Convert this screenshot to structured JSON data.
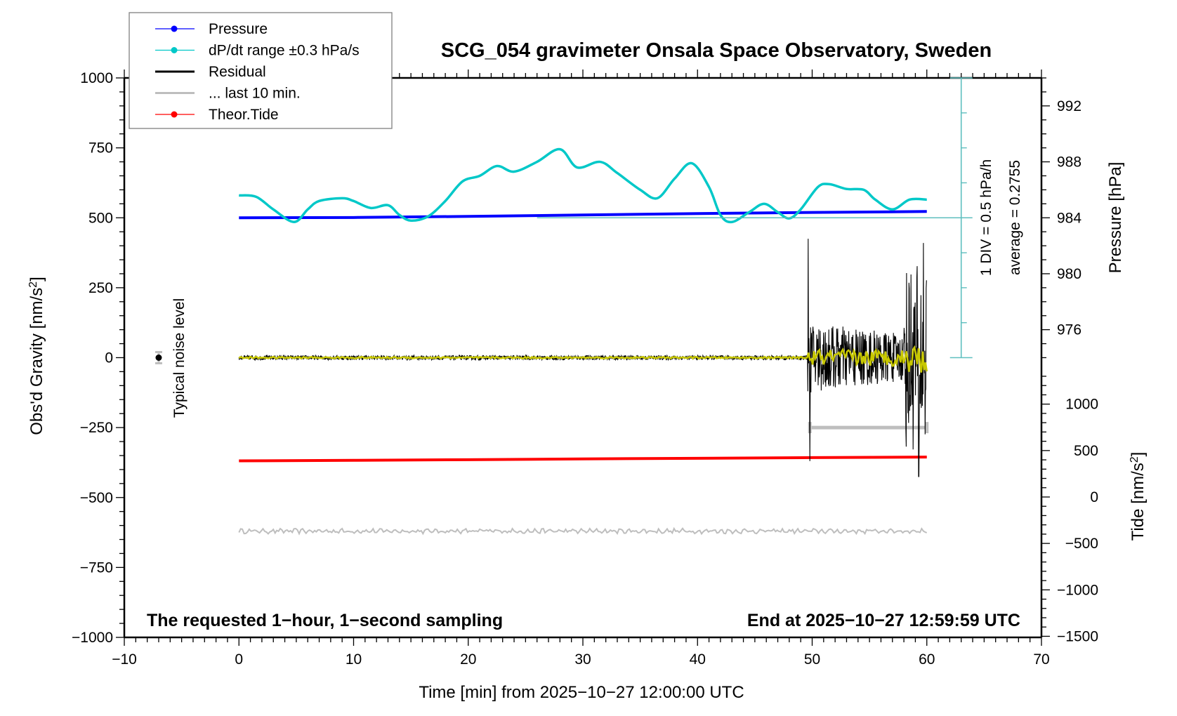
{
  "chart_data": {
    "type": "line",
    "title": "SCG_054 gravimeter Onsala Space Observatory, Sweden",
    "xlabel": "Time [min] from 2025−10−27 12:00:00 UTC",
    "ylabel_left": "Obs'd Gravity [nm/s²]",
    "ylabel_right_pressure": "Pressure [hPa]",
    "ylabel_right_tide": "Tide [nm/s²]",
    "xlim": [
      -10,
      70
    ],
    "ylim_left": [
      -1000,
      1000
    ],
    "x_ticks": [
      -10,
      0,
      10,
      20,
      30,
      40,
      50,
      60,
      70
    ],
    "x_tick_labels": [
      "−10",
      "0",
      "10",
      "20",
      "30",
      "40",
      "50",
      "60",
      "70"
    ],
    "y_left_ticks": [
      1000,
      750,
      500,
      250,
      0,
      -250,
      -500,
      -750,
      -1000
    ],
    "y_left_tick_labels": [
      "1000",
      "750",
      "500",
      "250",
      "0",
      "−250",
      "−500",
      "−750",
      "−1000"
    ],
    "pressure_axis": {
      "ticks": [
        992,
        988,
        984,
        980,
        976
      ],
      "tick_labels": [
        "992",
        "988",
        "984",
        "980",
        "976"
      ],
      "gravity_at_984": 500,
      "gravity_per_hPa": 50
    },
    "tide_axis": {
      "ticks": [
        1000,
        500,
        0,
        -500,
        -1000,
        -1500
      ],
      "tick_labels": [
        "1000",
        "500",
        "0",
        "−500",
        "−1000",
        "−1500"
      ],
      "range": [
        -1500,
        1500
      ],
      "visible_range": [
        -1500,
        1000
      ]
    },
    "dpdt_scale": {
      "label": "1 DIV = 0.5 hPa/h",
      "average_label": "average = 0.2755",
      "x": 63,
      "gravity_range": [
        0,
        1000
      ],
      "divisions": 8,
      "baseline_gravity": 500
    },
    "legend": {
      "position": "top-left",
      "entries": [
        {
          "label": "Pressure",
          "color": "#0000ff",
          "marker": true,
          "style": "thin"
        },
        {
          "label": "dP/dt range ±0.3 hPa/s",
          "color": "#00c8c8",
          "marker": true,
          "style": "thin"
        },
        {
          "label": "Residual",
          "color": "#000000",
          "marker": false,
          "style": "thick"
        },
        {
          "label": "... last 10 min.",
          "color": "#bebebe",
          "marker": false,
          "style": "thick"
        },
        {
          "label": "Theor.Tide",
          "color": "#ff0000",
          "marker": true,
          "style": "thin"
        }
      ]
    },
    "annotations": {
      "bottom_left": "The requested 1−hour, 1−second sampling",
      "bottom_right": "End at 2025−10−27 12:59:59 UTC",
      "noise_label": "Typical noise level",
      "noise_marker": {
        "x": -7,
        "y": 0,
        "err": 20
      }
    },
    "series": [
      {
        "name": "Pressure",
        "unit": "hPa",
        "color": "#0000ff",
        "x": [
          0,
          10,
          20,
          30,
          40,
          50,
          60
        ],
        "values": [
          984.0,
          984.02,
          984.1,
          984.2,
          984.3,
          984.38,
          984.45
        ]
      },
      {
        "name": "dP/dt",
        "unit": "gravity-scaled",
        "color": "#00c8c8",
        "x": [
          0,
          1.5,
          3,
          4.8,
          6,
          7,
          9,
          10,
          11.5,
          13,
          14,
          15,
          16.5,
          18,
          19.5,
          21,
          22.5,
          24,
          26,
          28,
          29.5,
          31.5,
          33,
          35,
          36.5,
          38,
          39.5,
          41,
          42,
          43,
          44.5,
          45.8,
          47,
          48,
          49,
          50.5,
          51.5,
          53,
          54.5,
          55.5,
          57,
          58.5,
          60
        ],
        "values": [
          580,
          575,
          530,
          485,
          530,
          560,
          570,
          560,
          535,
          545,
          510,
          490,
          505,
          560,
          630,
          650,
          685,
          665,
          700,
          745,
          680,
          700,
          660,
          600,
          570,
          640,
          695,
          610,
          510,
          485,
          520,
          550,
          520,
          498,
          530,
          610,
          620,
          603,
          600,
          565,
          530,
          565,
          565
        ]
      },
      {
        "name": "Residual",
        "unit": "nm/s²",
        "color": "#000000",
        "quiet_amplitude": 8,
        "quiet_until": 49.6,
        "noisy_amplitude": 130,
        "burst_start": 58,
        "burst_amplitude": 330,
        "spike_up": 425,
        "spike_down": -425,
        "x_end": 60
      },
      {
        "name": "Residual (filtered)",
        "unit": "nm/s²",
        "color": "#c8c800",
        "noisy_amplitude": 30,
        "burst_amplitude": 55
      },
      {
        "name": "... last 10 min.",
        "color": "#bebebe",
        "x": [
          49.8,
          60
        ],
        "y": -250
      },
      {
        "name": "Theor.Tide",
        "unit": "nm/s² (tide axis)",
        "color": "#ff0000",
        "x": [
          0,
          10,
          20,
          30,
          40,
          50,
          60
        ],
        "values": [
          389,
          395,
          402,
          410,
          417,
          424,
          430
        ]
      },
      {
        "name": "Noise reference",
        "color": "#bebebe",
        "y": -620,
        "amplitude": 10,
        "x": [
          0,
          60
        ]
      }
    ]
  }
}
